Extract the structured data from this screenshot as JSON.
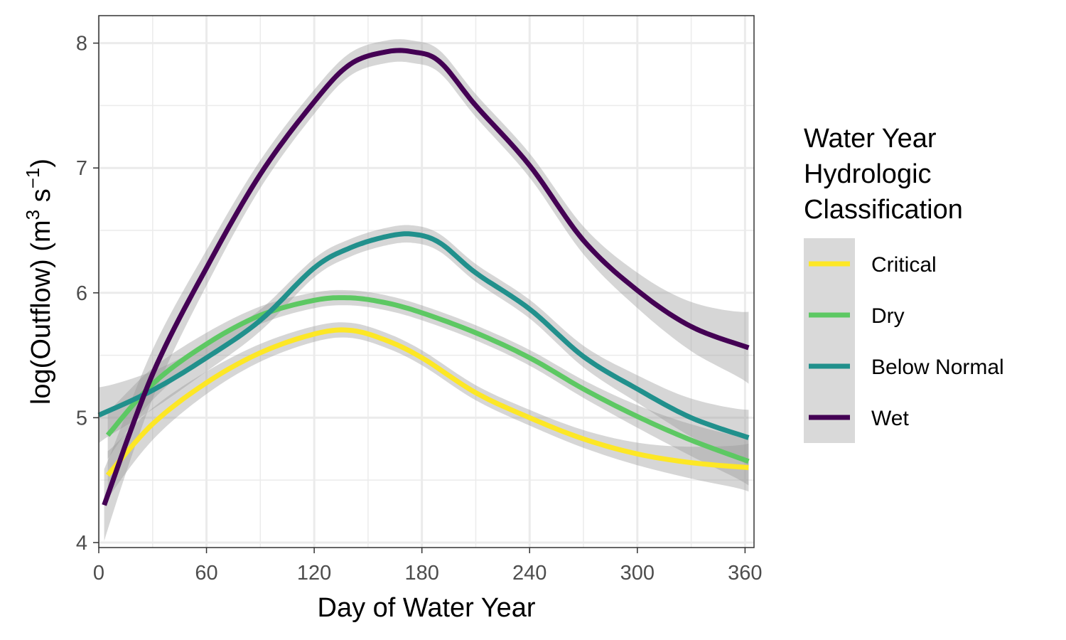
{
  "chart_data": {
    "type": "line",
    "title": "",
    "xlabel": "Day of Water Year",
    "ylabel": {
      "main": "log(Outflow) (m",
      "sup1": "3",
      "mid": " s",
      "sup2": "−1",
      "end": ")"
    },
    "xlim": [
      0,
      365
    ],
    "ylim": [
      3.96,
      8.22
    ],
    "x_ticks": [
      0,
      60,
      120,
      180,
      240,
      300,
      360
    ],
    "y_ticks": [
      4,
      5,
      6,
      7,
      8
    ],
    "grid": true,
    "confidence_band": true,
    "legend": {
      "title_lines": [
        "Water Year",
        "Hydrologic",
        "Classification"
      ],
      "position": "right"
    },
    "series": [
      {
        "name": "Critical",
        "color": "#FDE725",
        "band": 0.06,
        "x": [
          5,
          30,
          60,
          90,
          120,
          140,
          160,
          180,
          210,
          240,
          270,
          300,
          330,
          362
        ],
        "values": [
          4.54,
          4.95,
          5.28,
          5.52,
          5.67,
          5.7,
          5.62,
          5.48,
          5.2,
          5.0,
          4.83,
          4.71,
          4.64,
          4.6
        ]
      },
      {
        "name": "Dry",
        "color": "#5DC863",
        "band": 0.06,
        "x": [
          5,
          30,
          60,
          90,
          120,
          140,
          160,
          180,
          210,
          240,
          270,
          300,
          330,
          362
        ],
        "values": [
          4.86,
          5.27,
          5.59,
          5.82,
          5.94,
          5.96,
          5.92,
          5.84,
          5.68,
          5.48,
          5.23,
          5.01,
          4.82,
          4.65
        ]
      },
      {
        "name": "Below Normal",
        "color": "#21908C",
        "band": 0.07,
        "x": [
          0,
          30,
          60,
          90,
          120,
          140,
          160,
          175,
          190,
          210,
          240,
          270,
          300,
          330,
          362
        ],
        "values": [
          5.02,
          5.22,
          5.48,
          5.78,
          6.2,
          6.36,
          6.45,
          6.47,
          6.4,
          6.16,
          5.87,
          5.49,
          5.23,
          5.0,
          4.84
        ]
      },
      {
        "name": "Wet",
        "color": "#440154",
        "band": 0.09,
        "x": [
          3,
          30,
          60,
          90,
          120,
          140,
          160,
          175,
          190,
          210,
          240,
          270,
          300,
          330,
          362
        ],
        "values": [
          4.3,
          5.35,
          6.2,
          6.95,
          7.53,
          7.83,
          7.93,
          7.93,
          7.85,
          7.5,
          7.02,
          6.42,
          6.02,
          5.73,
          5.56
        ]
      }
    ]
  }
}
